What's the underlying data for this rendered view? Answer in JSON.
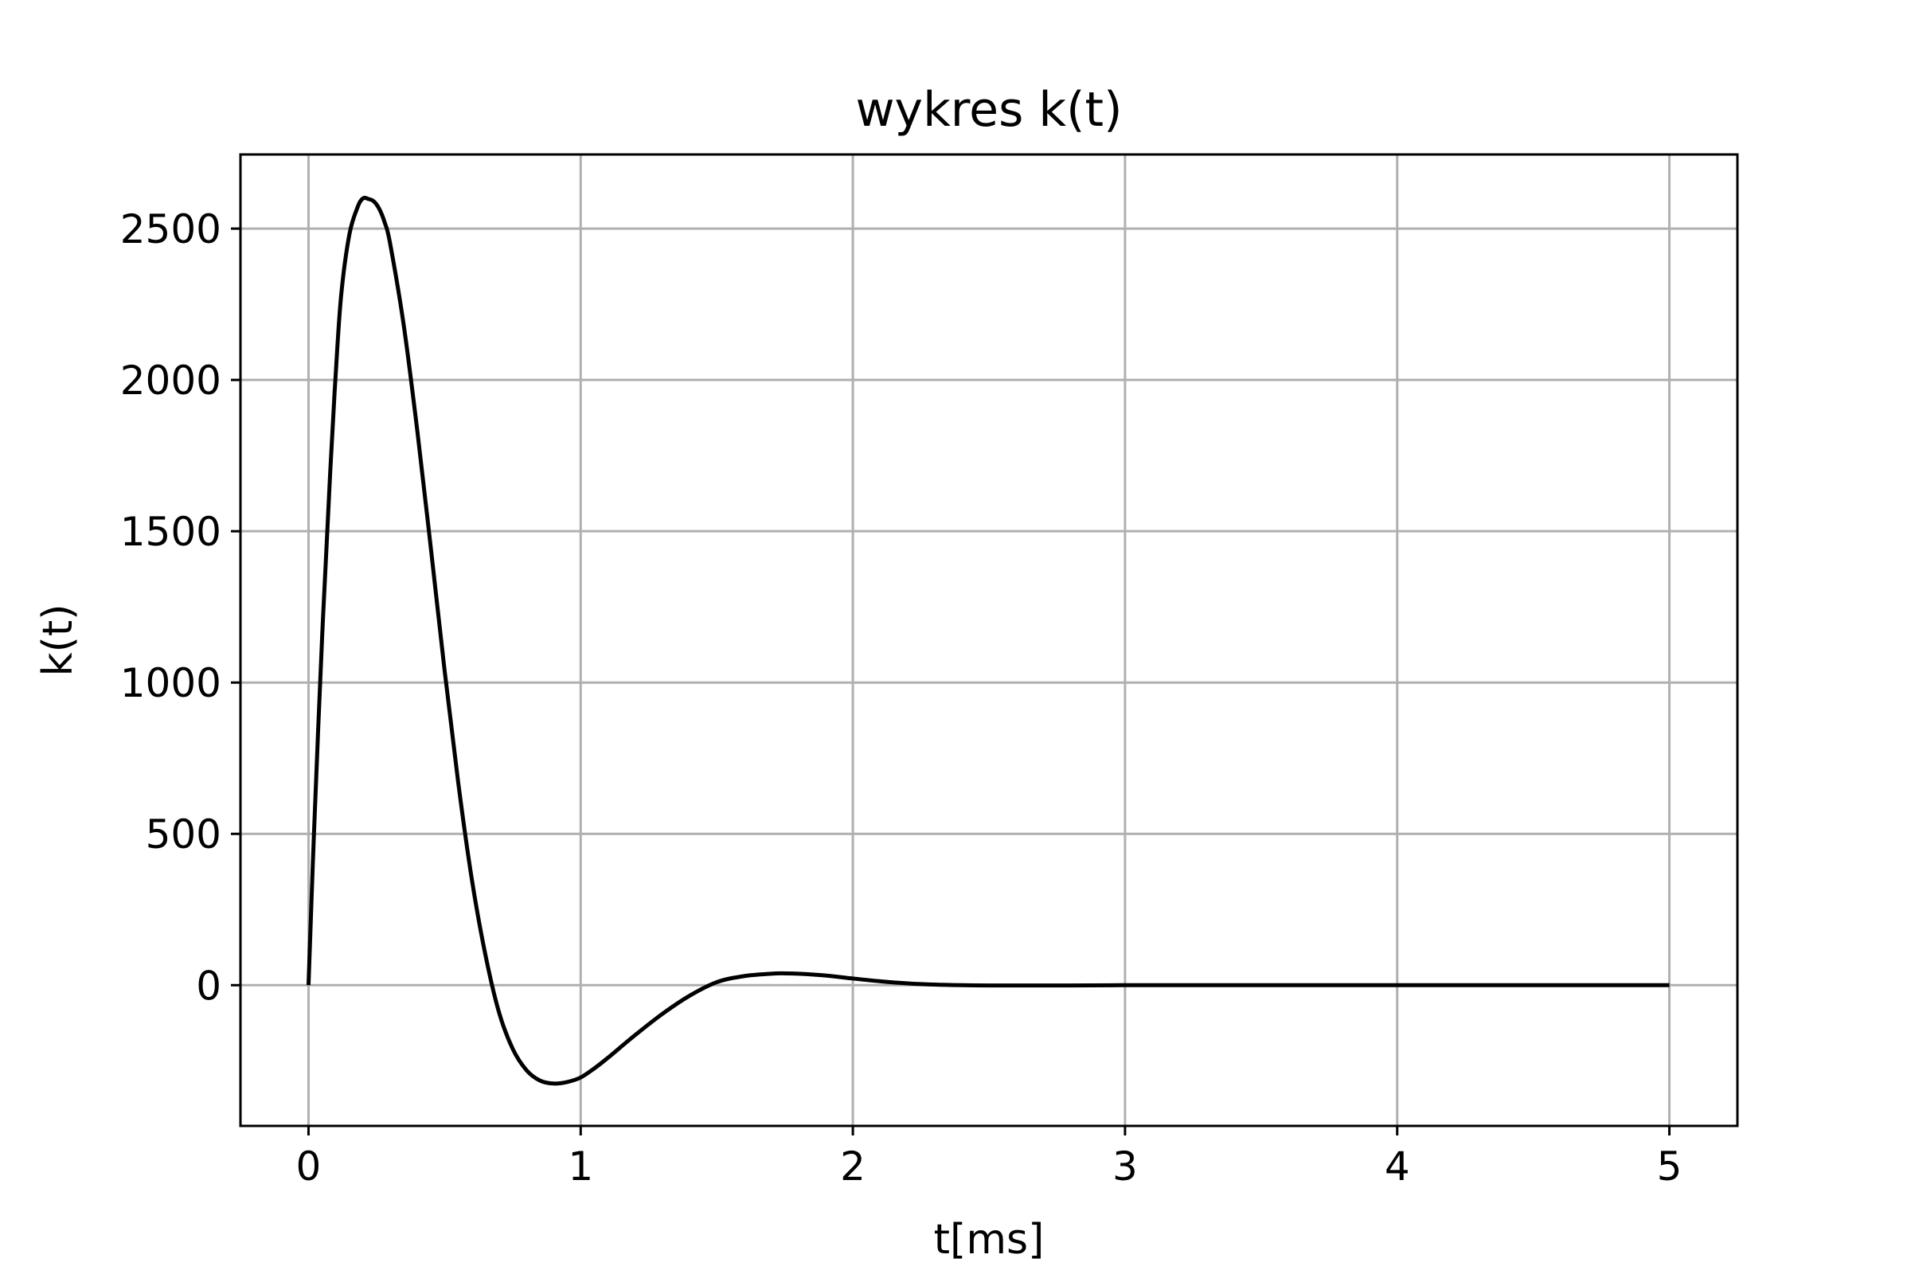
{
  "chart_data": {
    "type": "line",
    "title": "wykres k(t)",
    "xlabel": "t[ms]",
    "ylabel": "k(t)",
    "xlim": [
      -0.25,
      5.25
    ],
    "ylim": [
      -465,
      2745
    ],
    "xticks": [
      0,
      1,
      2,
      3,
      4,
      5
    ],
    "yticks": [
      0,
      500,
      1000,
      1500,
      2000,
      2500
    ],
    "grid": true,
    "line_color": "#000000",
    "grid_color": "#b0b0b0",
    "series": [
      {
        "x": [
          0,
          0.02,
          0.05,
          0.08,
          0.1,
          0.12,
          0.15,
          0.18,
          0.2,
          0.22,
          0.24,
          0.26,
          0.28,
          0.3,
          0.35,
          0.4,
          0.45,
          0.5,
          0.55,
          0.6,
          0.65,
          0.7,
          0.75,
          0.8,
          0.85,
          0.9,
          0.95,
          1.0,
          1.05,
          1.1,
          1.2,
          1.3,
          1.4,
          1.5,
          1.6,
          1.7,
          1.75,
          1.8,
          1.9,
          2.0,
          2.1,
          2.2,
          2.3,
          2.4,
          2.5,
          2.6,
          2.8,
          3.0,
          3.2,
          3.5,
          4.0,
          4.5,
          5.0
        ],
        "y": [
          0,
          500,
          1150,
          1700,
          2020,
          2280,
          2480,
          2570,
          2600,
          2598,
          2590,
          2565,
          2520,
          2450,
          2180,
          1830,
          1440,
          1040,
          670,
          350,
          100,
          -90,
          -210,
          -280,
          -315,
          -325,
          -320,
          -305,
          -275,
          -240,
          -165,
          -95,
          -35,
          10,
          30,
          38,
          39,
          38,
          32,
          22,
          13,
          6,
          2,
          0,
          -1,
          -1,
          -1,
          0,
          0,
          0,
          0,
          0,
          0
        ]
      }
    ]
  }
}
